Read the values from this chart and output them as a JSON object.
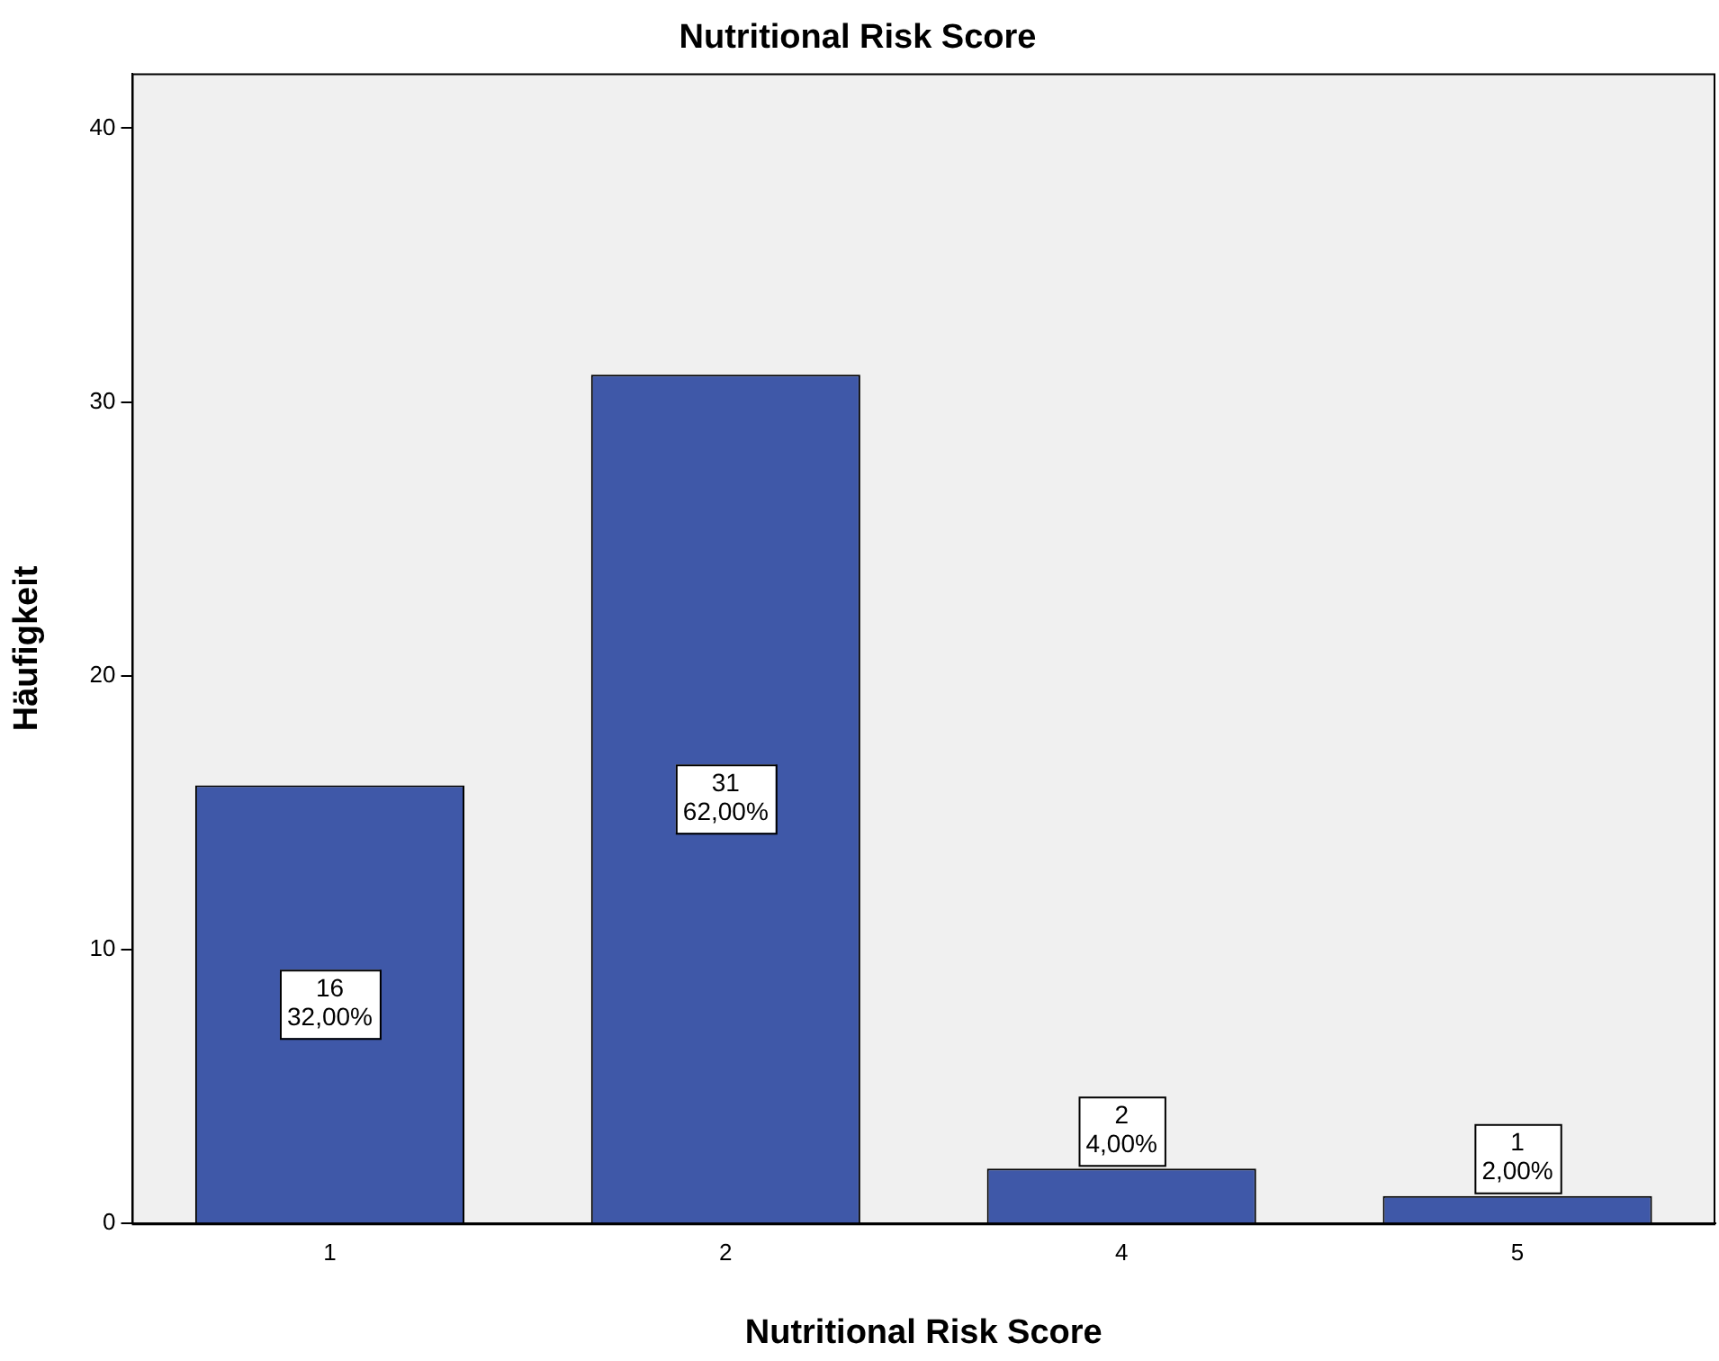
{
  "chart_data": {
    "type": "bar",
    "title": "Nutritional Risk Score",
    "xlabel": "Nutritional Risk Score",
    "ylabel": "Häufigkeit",
    "categories": [
      "1",
      "2",
      "4",
      "5"
    ],
    "values": [
      16,
      31,
      2,
      1
    ],
    "value_labels": [
      "16\n32,00%",
      "31\n62,00%",
      "2\n4,00%",
      "1\n2,00%"
    ],
    "color": "#3f58a8",
    "ylim": [
      0,
      42
    ],
    "yticks": [
      0,
      10,
      20,
      30,
      40
    ],
    "grid": false,
    "legend": false
  }
}
